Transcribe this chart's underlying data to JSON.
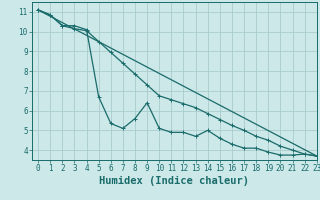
{
  "title": "",
  "xlabel": "Humidex (Indice chaleur)",
  "ylabel": "",
  "background_color": "#cce8e8",
  "grid_color": "#aacccc",
  "line_color": "#1a6b6b",
  "xlim": [
    -0.5,
    23
  ],
  "ylim": [
    3.5,
    11.5
  ],
  "xticks": [
    0,
    1,
    2,
    3,
    4,
    5,
    6,
    7,
    8,
    9,
    10,
    11,
    12,
    13,
    14,
    15,
    16,
    17,
    18,
    19,
    20,
    21,
    22,
    23
  ],
  "yticks": [
    4,
    5,
    6,
    7,
    8,
    9,
    10,
    11
  ],
  "line1_x": [
    0,
    1,
    2,
    3,
    4,
    5,
    6,
    7,
    8,
    9,
    10,
    11,
    12,
    13,
    14,
    15,
    16,
    17,
    18,
    19,
    20,
    21,
    22,
    23
  ],
  "line1_y": [
    11.1,
    10.85,
    10.3,
    10.3,
    10.1,
    6.7,
    5.35,
    5.1,
    5.6,
    6.4,
    5.1,
    4.9,
    4.9,
    4.7,
    5.0,
    4.6,
    4.3,
    4.1,
    4.1,
    3.9,
    3.75,
    3.75,
    3.8,
    3.7
  ],
  "line2_x": [
    0,
    1,
    2,
    3,
    4,
    5,
    6,
    7,
    8,
    9,
    10,
    11,
    12,
    13,
    14,
    15,
    16,
    17,
    18,
    19,
    20,
    21,
    22,
    23
  ],
  "line2_y": [
    11.1,
    10.85,
    10.3,
    10.15,
    10.05,
    9.5,
    8.95,
    8.4,
    7.85,
    7.3,
    6.75,
    6.55,
    6.35,
    6.15,
    5.85,
    5.55,
    5.25,
    5.0,
    4.7,
    4.5,
    4.2,
    4.0,
    3.8,
    3.7
  ],
  "line3_x": [
    0,
    23
  ],
  "line3_y": [
    11.1,
    3.7
  ],
  "font_color": "#1a6b6b",
  "tick_fontsize": 5.5,
  "label_fontsize": 7.5
}
